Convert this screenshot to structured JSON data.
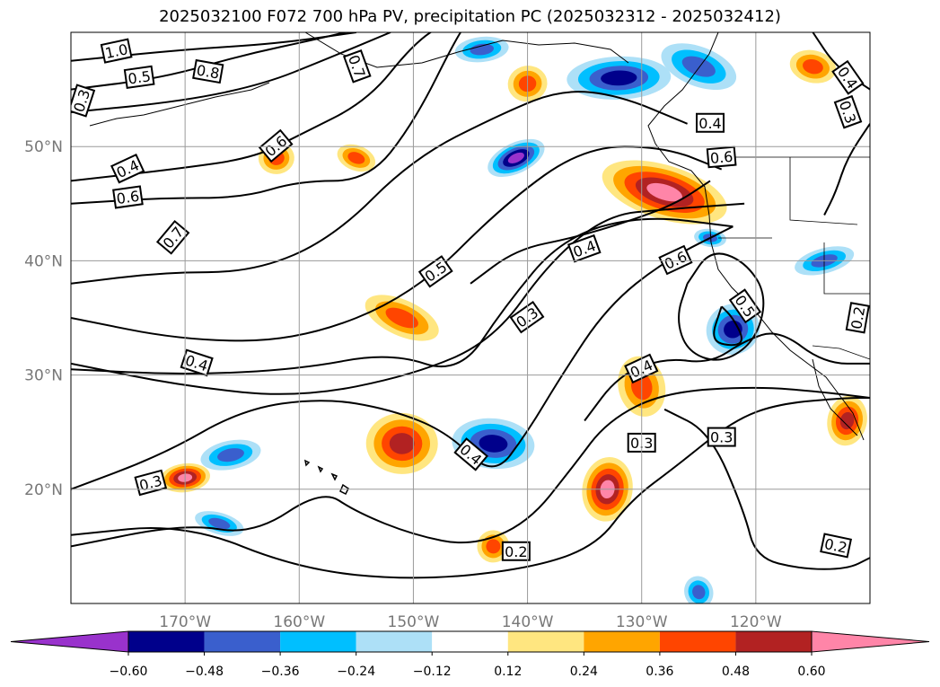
{
  "chart_data": {
    "type": "contour-map",
    "title": "2025032100 F072 700 hPa PV, precipitation PC (2025032312 - 2025032412)",
    "projection": "PlateCarree",
    "lon_range": [
      -180,
      -110
    ],
    "lat_range": [
      10,
      60
    ],
    "grid": true,
    "x_ticks": [
      "170°W",
      "160°W",
      "150°W",
      "140°W",
      "130°W",
      "120°W"
    ],
    "x_tick_values": [
      -170,
      -160,
      -150,
      -140,
      -130,
      -120
    ],
    "y_ticks": [
      "20°N",
      "30°N",
      "40°N",
      "50°N"
    ],
    "y_tick_values": [
      20,
      30,
      40,
      50
    ],
    "colorbar": {
      "orientation": "horizontal",
      "extend": "both",
      "boundaries": [
        -0.72,
        -0.6,
        -0.48,
        -0.36,
        -0.24,
        -0.12,
        0.12,
        0.24,
        0.36,
        0.48,
        0.6,
        0.72
      ],
      "colors": [
        "#9932CC",
        "#00008B",
        "#3A5FCD",
        "#00BFFF",
        "#ADE0F7",
        "#FFFFFF",
        "#FFE680",
        "#FFA500",
        "#FF4500",
        "#B22222",
        "#FF85A8"
      ],
      "tick_labels": [
        "−0.60",
        "−0.48",
        "−0.36",
        "−0.24",
        "−0.12",
        "0.12",
        "0.24",
        "0.36",
        "0.48",
        "0.60"
      ]
    },
    "contour_label_values": [
      "1.0",
      "0.5",
      "0.8",
      "0.3",
      "0.4",
      "0.6",
      "0.7",
      "0.6",
      "0.5",
      "0.4",
      "0.3",
      "0.4",
      "0.4",
      "0.3",
      "0.2",
      "0.3",
      "0.3",
      "0.2",
      "0.6",
      "0.5",
      "0.4",
      "0.6",
      "0.4",
      "0.7",
      "0.4",
      "0.3",
      "0.2"
    ],
    "precip_regions": [
      {
        "lon": -141,
        "lat": 49,
        "value": -0.62
      },
      {
        "lon": -132,
        "lat": 56,
        "value": -0.5
      },
      {
        "lon": -125,
        "lat": 57,
        "value": -0.45
      },
      {
        "lon": -144,
        "lat": 58.5,
        "value": -0.4
      },
      {
        "lon": -128,
        "lat": 46,
        "value": 0.65
      },
      {
        "lon": -140,
        "lat": 55.5,
        "value": 0.4
      },
      {
        "lon": -115,
        "lat": 57,
        "value": 0.45
      },
      {
        "lon": -130,
        "lat": 29,
        "value": 0.4
      },
      {
        "lon": -133,
        "lat": 20,
        "value": 0.62
      },
      {
        "lon": -143,
        "lat": 15,
        "value": 0.36
      },
      {
        "lon": -143,
        "lat": 24,
        "value": -0.5
      },
      {
        "lon": -122,
        "lat": 34,
        "value": -0.5
      },
      {
        "lon": -151,
        "lat": 24,
        "value": 0.5
      },
      {
        "lon": -151,
        "lat": 35,
        "value": 0.4
      },
      {
        "lon": -162,
        "lat": 49,
        "value": 0.4
      },
      {
        "lon": -155,
        "lat": 49,
        "value": 0.36
      },
      {
        "lon": -170,
        "lat": 21,
        "value": 0.62
      },
      {
        "lon": -167,
        "lat": 17,
        "value": -0.42
      },
      {
        "lon": -166,
        "lat": 23,
        "value": -0.45
      },
      {
        "lon": -112,
        "lat": 26,
        "value": 0.55
      },
      {
        "lon": -114,
        "lat": 40,
        "value": -0.42
      },
      {
        "lon": -124,
        "lat": 42,
        "value": -0.45
      },
      {
        "lon": -125,
        "lat": 11,
        "value": -0.38
      }
    ]
  }
}
